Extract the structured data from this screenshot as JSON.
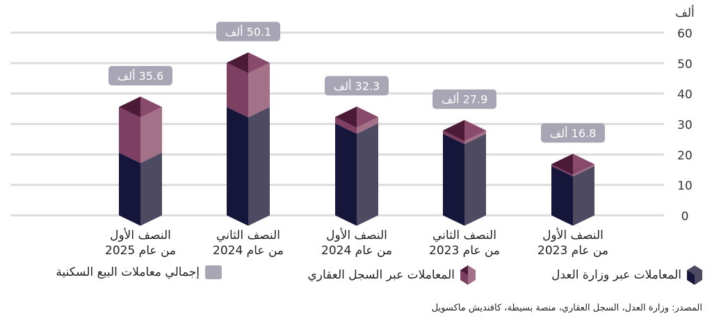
{
  "chart_data": {
    "type": "bar",
    "stacked": true,
    "unit_label": "ألف",
    "value_suffix": "ألف",
    "ylim": [
      0,
      60
    ],
    "yticks": [
      0,
      10,
      20,
      30,
      40,
      50,
      60
    ],
    "grid": true,
    "direction": "rtl",
    "categories": [
      {
        "line1": "النصف الأول",
        "line2": "من عام 2023"
      },
      {
        "line1": "النصف الثاني",
        "line2": "من عام 2023"
      },
      {
        "line1": "النصف الأول",
        "line2": "من عام 2024"
      },
      {
        "line1": "النصف الثاني",
        "line2": "من عام 2024"
      },
      {
        "line1": "النصف الأول",
        "line2": "من عام 2025"
      }
    ],
    "series": [
      {
        "name": "المعاملات عبر وزارة العدل",
        "values": [
          16.2,
          26.8,
          30.2,
          35.6,
          20.6
        ],
        "color": "#16163a"
      },
      {
        "name": "المعاملات عبر السجل العقاري",
        "values": [
          0.6,
          1.1,
          2.1,
          14.5,
          15.0
        ],
        "color": "#8a4a6c"
      }
    ],
    "totals": {
      "name": "إجمالي معاملات البيع السكنية",
      "values": [
        16.8,
        27.9,
        32.3,
        50.1,
        35.6
      ],
      "labels": [
        "16.8",
        "27.9",
        "32.3",
        "50.1",
        "35.6"
      ],
      "color": "#a8a6b4"
    },
    "legend_position": "bottom"
  },
  "source": "المصدر: وزارة العدل، السجل العقاري، منصة بسيطة، كافنديش ماكسويل"
}
